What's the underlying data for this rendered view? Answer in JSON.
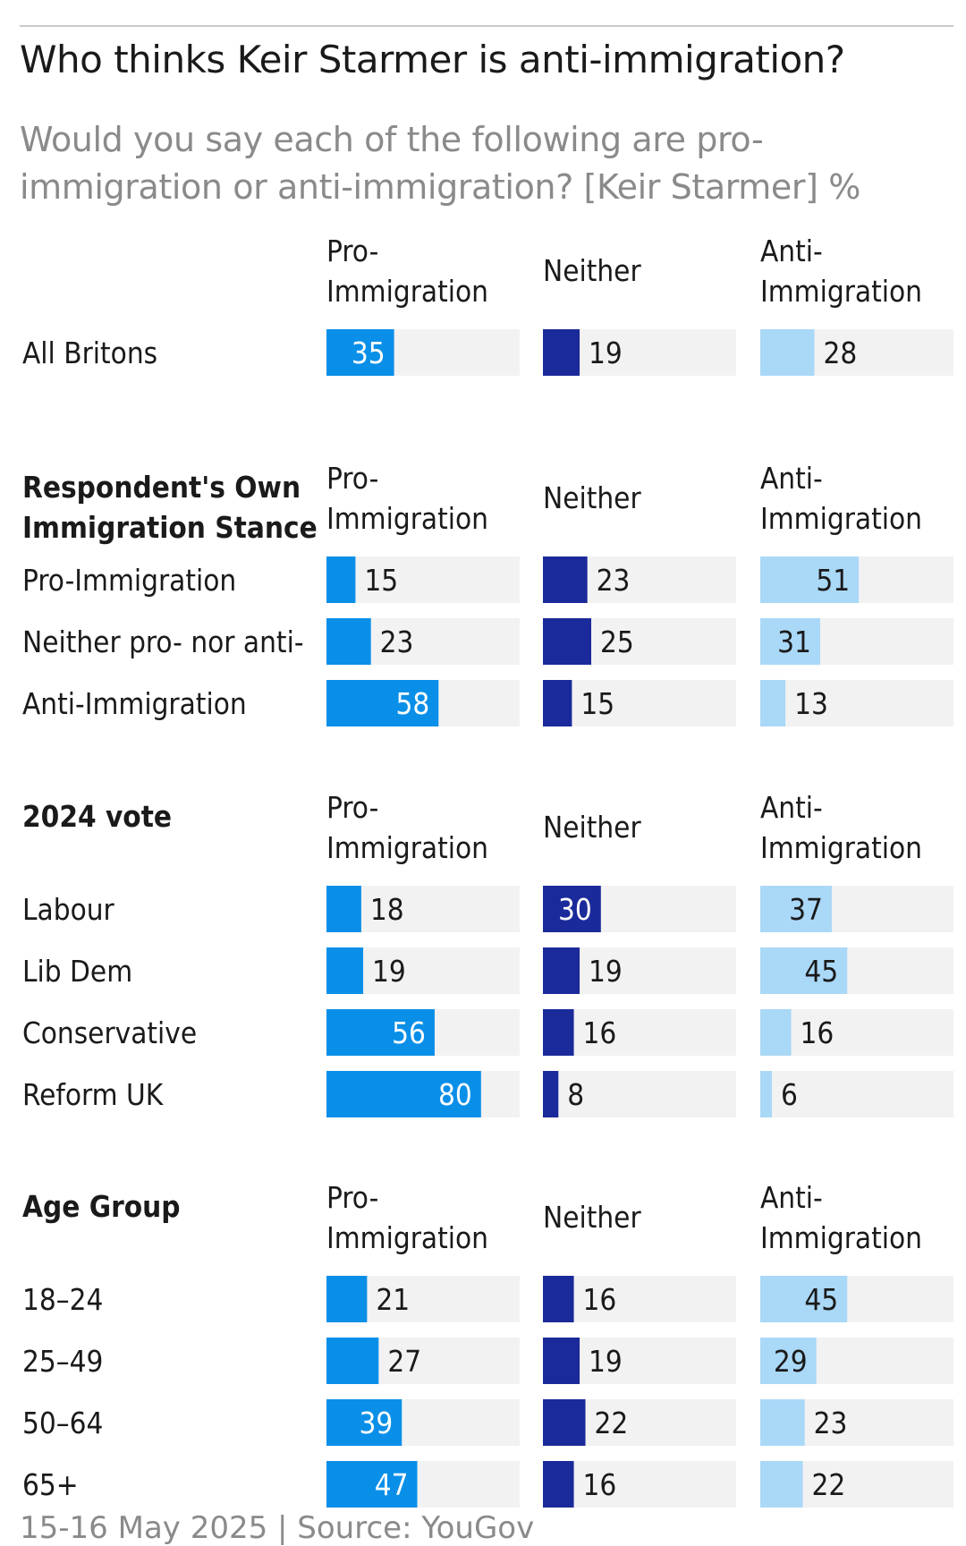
{
  "title": "Who thinks Keir Starmer is anti-immigration?",
  "subtitle": "Would you say each of the following are pro-immigration or anti-immigration? [Keir Starmer] %",
  "source": "15-16 May 2025 | Source: YouGov",
  "colors": {
    "pro": "#0a8fe8",
    "neither": "#1b2a9a",
    "anti": "#aad8f7",
    "track": "#f2f2f2",
    "text": "#1a1a1a",
    "muted": "#8a8a8a"
  },
  "chart_data": {
    "type": "bar",
    "orientation": "horizontal",
    "xlim": [
      0,
      100
    ],
    "columns": [
      {
        "key": "pro",
        "label_lines": [
          "Pro-",
          "Immigration"
        ]
      },
      {
        "key": "neither",
        "label_lines": [
          "Neither"
        ]
      },
      {
        "key": "anti",
        "label_lines": [
          "Anti-",
          "Immigration"
        ]
      }
    ],
    "groups": [
      {
        "heading_lines": [],
        "rows": [
          {
            "label": "All Britons",
            "values": [
              35,
              19,
              28
            ]
          }
        ]
      },
      {
        "heading_lines": [
          "Respondent's Own",
          "Immigration Stance"
        ],
        "rows": [
          {
            "label": "Pro-Immigration",
            "values": [
              15,
              23,
              51
            ]
          },
          {
            "label": "Neither pro- nor anti-",
            "values": [
              23,
              25,
              31
            ]
          },
          {
            "label": "Anti-Immigration",
            "values": [
              58,
              15,
              13
            ]
          }
        ]
      },
      {
        "heading_lines": [
          "2024 vote"
        ],
        "rows": [
          {
            "label": "Labour",
            "values": [
              18,
              30,
              37
            ]
          },
          {
            "label": "Lib Dem",
            "values": [
              19,
              19,
              45
            ]
          },
          {
            "label": "Conservative",
            "values": [
              56,
              16,
              16
            ]
          },
          {
            "label": "Reform UK",
            "values": [
              80,
              8,
              6
            ]
          }
        ]
      },
      {
        "heading_lines": [
          "Age Group"
        ],
        "rows": [
          {
            "label": "18–24",
            "values": [
              21,
              16,
              45
            ]
          },
          {
            "label": "25–49",
            "values": [
              27,
              19,
              29
            ]
          },
          {
            "label": "50–64",
            "values": [
              39,
              22,
              23
            ]
          },
          {
            "label": "65+",
            "values": [
              47,
              16,
              22
            ]
          }
        ]
      }
    ]
  }
}
